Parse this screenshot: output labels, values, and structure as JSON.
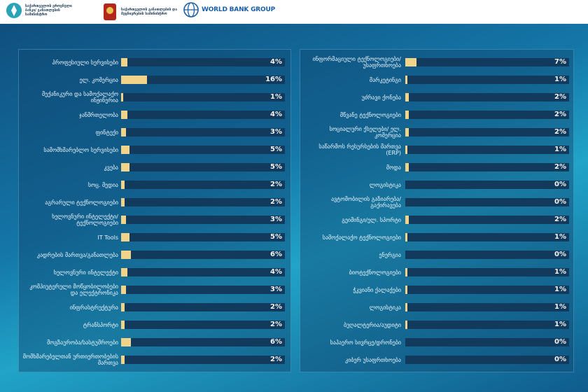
{
  "header": {
    "logo1_text": "საქართველოს ეროვნული ბანკი/ განათლების სამინისტრო",
    "logo2_text": "საქართველოს განათლების და მეცნიერების სამინისტრო",
    "logo3_text": "WORLD BANK GROUP"
  },
  "colors": {
    "bar_fill": "#f2d38a",
    "track": "#123a5c",
    "text": "#eaf4fb"
  },
  "chart_data": [
    {
      "type": "bar",
      "orientation": "horizontal",
      "categories": [
        "პროფესიული სერვისები",
        "ელ. კომერცია",
        "მექანიკური და სამოქალაქო ინჟინერია",
        "ჯანმრთელობა",
        "ფინტექი",
        "სამომხმარებლო სერვისები",
        "კვება",
        "სოც. მედია",
        "აგრარული ტექნოლოგიები",
        "ხელოვნური ინტელექტი/ ტექნოლოგიები",
        "IT Tools",
        "კადრების მართვა/განათლება",
        "ხელოვნური ინტელექტი",
        "კომპიუტერული მოწყობილობები და ელექტრონიკა",
        "ინფრასტრუქტურა",
        "ტრანსპორტი",
        "მოგზაურობა/სასტუმროები",
        "მომხმარებელთან ურთიერთობების მართვა"
      ],
      "values": [
        4,
        16,
        1,
        4,
        3,
        5,
        5,
        2,
        2,
        3,
        5,
        6,
        4,
        3,
        2,
        2,
        6,
        2
      ],
      "value_labels": [
        "4%",
        "16%",
        "1%",
        "4%",
        "3%",
        "5%",
        "5%",
        "2%",
        "2%",
        "3%",
        "5%",
        "6%",
        "4%",
        "3%",
        "2%",
        "2%",
        "6%",
        "2%"
      ],
      "xlim": [
        0,
        100
      ]
    },
    {
      "type": "bar",
      "orientation": "horizontal",
      "categories": [
        "ინფორმაციული ტექნოლოგიები/უსაფრთხოება",
        "მარკეტინგი",
        "უძრავი ქონება",
        "მწვანე ტექნოლოგიები",
        "სოციალური ქსელები/ ელ. კომერცია",
        "საწარმოს რესურსების მართვა (ERP)",
        "მოდა",
        "ლოგისტიკა",
        "ავტომობილის გაზიარება/გაქირავება",
        "გეიმინგი/ელ. სპორტი",
        "სამოქალაქო ტექნოლოგიები",
        "ენერგია",
        "ბიოტექნოლოგიები",
        "ჭკვიანი ქალაქები",
        "ლოგისტიკა",
        "ბუღალტერია/აუდიტი",
        "საჰაერო სივრცე/დრონები",
        "კიბერ უსაფრთხოება"
      ],
      "values": [
        7,
        1,
        2,
        2,
        2,
        1,
        2,
        0,
        0,
        2,
        1,
        0,
        1,
        1,
        1,
        1,
        0,
        0
      ],
      "value_labels": [
        "7%",
        "1%",
        "2%",
        "2%",
        "2%",
        "1%",
        "2%",
        "0%",
        "0%",
        "2%",
        "1%",
        "0%",
        "1%",
        "1%",
        "1%",
        "1%",
        "0%",
        "0%"
      ],
      "xlim": [
        0,
        100
      ]
    }
  ]
}
